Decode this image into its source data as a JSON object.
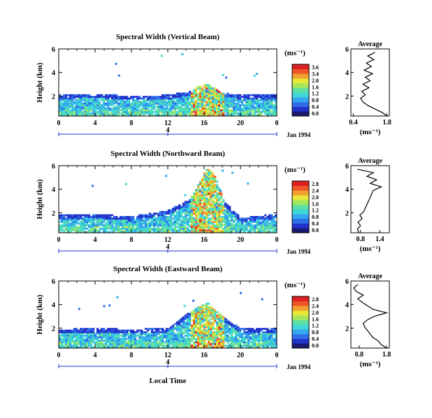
{
  "figure": {
    "xlabel": "Local Time",
    "date_label": "Jan 1994",
    "day_label": "4",
    "colorbar_unit": "(ms⁻¹)",
    "profile_xlabel": "(ms⁻¹)",
    "profile_title": "Average",
    "ylabel": "Height (km)"
  },
  "colorscale": [
    "#1a1a6e",
    "#2233cc",
    "#2f6fe8",
    "#33a8f0",
    "#3ed6d6",
    "#5fe0a0",
    "#a6e65a",
    "#e8e83a",
    "#f2a030",
    "#ee5528",
    "#dd2020"
  ],
  "chart_data": [
    {
      "type": "heatmap",
      "title": "Spectral Width (Vertical Beam)",
      "xlabel": "Local Time",
      "ylabel": "Height (km)",
      "x_ticks": [
        "0",
        "4",
        "8",
        "12",
        "16",
        "20",
        "0"
      ],
      "y_ticks": [
        "2",
        "4",
        "6"
      ],
      "xlim": [
        0,
        24
      ],
      "ylim": [
        0.3,
        6.0
      ],
      "colorbar": {
        "unit": "(ms⁻¹)",
        "ticks": [
          "3.6",
          "3.4",
          "2.0",
          "1.6",
          "1.2",
          "0.8",
          "0.4",
          "0.0"
        ],
        "range": [
          0.0,
          3.6
        ]
      },
      "profile": {
        "title": "Average",
        "xlabel": "(ms⁻¹)",
        "x_ticks": [
          "0.4",
          "1.8"
        ],
        "xlim": [
          0.3,
          1.9
        ],
        "heights": [
          0.3,
          0.6,
          0.9,
          1.2,
          1.5,
          1.8,
          2.1,
          2.4,
          2.7,
          3.0,
          3.3,
          3.6,
          3.9,
          4.2,
          4.5,
          4.8,
          5.1,
          5.4,
          5.7
        ],
        "values": [
          1.8,
          1.6,
          1.3,
          1.0,
          0.8,
          0.7,
          0.9,
          0.75,
          1.05,
          0.8,
          1.1,
          0.9,
          1.2,
          0.85,
          1.15,
          0.95,
          1.25,
          1.0,
          1.3
        ]
      },
      "echo_tops_km": [
        [
          0,
          2.1
        ],
        [
          4,
          2.2
        ],
        [
          8,
          2.0
        ],
        [
          12,
          2.1
        ],
        [
          14.5,
          2.4
        ],
        [
          15.5,
          2.9
        ],
        [
          16.5,
          3.0
        ],
        [
          18,
          2.3
        ],
        [
          20,
          2.1
        ],
        [
          24,
          2.1
        ]
      ]
    },
    {
      "type": "heatmap",
      "title": "Spectral Width (Northward Beam)",
      "xlabel": "Local Time",
      "ylabel": "Height (km)",
      "x_ticks": [
        "0",
        "4",
        "8",
        "12",
        "16",
        "20",
        "0"
      ],
      "y_ticks": [
        "2",
        "4",
        "6"
      ],
      "xlim": [
        0,
        24
      ],
      "ylim": [
        0.3,
        6.0
      ],
      "colorbar": {
        "unit": "(ms⁻¹)",
        "ticks": [
          "2.8",
          "2.4",
          "2.0",
          "1.6",
          "1.2",
          "0.8",
          "0.4",
          "0.0"
        ],
        "range": [
          0.0,
          2.8
        ]
      },
      "profile": {
        "title": "Average",
        "xlabel": "(ms⁻¹)",
        "x_ticks": [
          "0.8",
          "1.4"
        ],
        "xlim": [
          0.5,
          1.7
        ],
        "heights": [
          0.3,
          0.6,
          0.9,
          1.2,
          1.5,
          1.8,
          2.1,
          2.4,
          2.7,
          3.0,
          3.3,
          3.6,
          3.9,
          4.2,
          4.5,
          4.8,
          5.1,
          5.4,
          5.7
        ],
        "values": [
          0.75,
          0.7,
          0.8,
          0.72,
          0.85,
          0.78,
          0.9,
          0.95,
          1.0,
          1.05,
          1.1,
          1.15,
          1.2,
          1.45,
          1.1,
          1.3,
          1.0,
          1.2,
          0.7
        ]
      },
      "echo_tops_km": [
        [
          0,
          1.8
        ],
        [
          4,
          1.9
        ],
        [
          8,
          1.7
        ],
        [
          12,
          2.2
        ],
        [
          14.5,
          3.2
        ],
        [
          15.5,
          4.6
        ],
        [
          16.3,
          5.8
        ],
        [
          17.2,
          5.2
        ],
        [
          18.2,
          3.0
        ],
        [
          20,
          1.6
        ],
        [
          24,
          1.9
        ]
      ]
    },
    {
      "type": "heatmap",
      "title": "Spectral Width (Eastward Beam)",
      "xlabel": "Local Time",
      "ylabel": "Height (km)",
      "x_ticks": [
        "0",
        "4",
        "8",
        "12",
        "16",
        "20",
        "0"
      ],
      "y_ticks": [
        "2",
        "4",
        "6"
      ],
      "xlim": [
        0,
        24
      ],
      "ylim": [
        0.3,
        6.0
      ],
      "colorbar": {
        "unit": "(ms⁻¹)",
        "ticks": [
          "2.8",
          "2.4",
          "2.0",
          "1.6",
          "1.2",
          "0.8",
          "0.4",
          "0.0"
        ],
        "range": [
          0.0,
          2.8
        ]
      },
      "profile": {
        "title": "Average",
        "xlabel": "(ms⁻¹)",
        "x_ticks": [
          "0.8",
          "1.8"
        ],
        "xlim": [
          0.5,
          1.9
        ],
        "heights": [
          0.3,
          0.6,
          0.9,
          1.2,
          1.5,
          1.8,
          2.1,
          2.4,
          2.7,
          3.0,
          3.3,
          3.6,
          3.9,
          4.2,
          4.5,
          4.8,
          5.1,
          5.4,
          5.7
        ],
        "values": [
          1.8,
          1.6,
          1.5,
          1.3,
          1.2,
          1.1,
          1.0,
          0.95,
          1.1,
          1.35,
          1.8,
          1.3,
          1.1,
          0.9,
          0.75,
          0.95,
          0.7,
          0.6,
          0.75
        ]
      },
      "echo_tops_km": [
        [
          0,
          1.9
        ],
        [
          4,
          2.0
        ],
        [
          8,
          1.9
        ],
        [
          12,
          2.0
        ],
        [
          14.5,
          3.4
        ],
        [
          15.5,
          4.0
        ],
        [
          16.5,
          4.1
        ],
        [
          18,
          3.0
        ],
        [
          20,
          2.0
        ],
        [
          24,
          2.0
        ]
      ]
    }
  ]
}
